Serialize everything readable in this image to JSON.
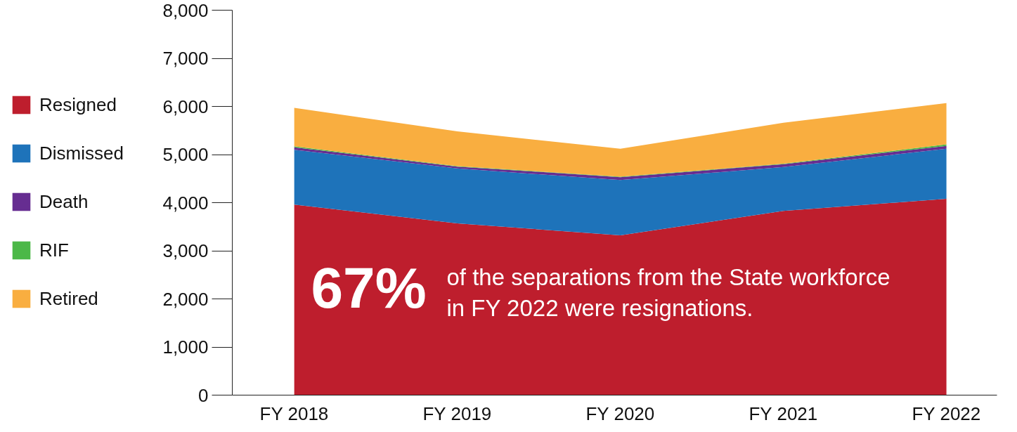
{
  "chart_data": {
    "type": "area",
    "stacked": true,
    "categories": [
      "FY 2018",
      "FY 2019",
      "FY 2020",
      "FY 2021",
      "FY 2022"
    ],
    "series": [
      {
        "name": "Resigned",
        "color": "#be1e2d",
        "values": [
          3960,
          3570,
          3320,
          3830,
          4080
        ]
      },
      {
        "name": "Dismissed",
        "color": "#1e73ba",
        "values": [
          1140,
          1140,
          1150,
          910,
          1040
        ]
      },
      {
        "name": "Death",
        "color": "#662d91",
        "values": [
          50,
          40,
          60,
          60,
          60
        ]
      },
      {
        "name": "RIF",
        "color": "#4cb848",
        "values": [
          20,
          10,
          10,
          10,
          30
        ]
      },
      {
        "name": "Retired",
        "color": "#f9ae40",
        "values": [
          800,
          720,
          580,
          850,
          860
        ]
      }
    ],
    "ylim": [
      0,
      8000
    ],
    "yticks": [
      0,
      {
        "value": 1000,
        "label": "1,000"
      },
      {
        "value": 2000,
        "label": "2,000"
      },
      {
        "value": 3000,
        "label": "3,000"
      },
      {
        "value": 4000,
        "label": "4,000"
      },
      {
        "value": 5000,
        "label": "5,000"
      },
      {
        "value": 6000,
        "label": "6,000"
      },
      {
        "value": 7000,
        "label": "7,000"
      },
      {
        "value": 8000,
        "label": "8,000"
      }
    ],
    "grid": false,
    "legend": "left",
    "annotations": [
      "67%",
      "of the separations from the State workforce in FY 2022 were resignations."
    ]
  }
}
